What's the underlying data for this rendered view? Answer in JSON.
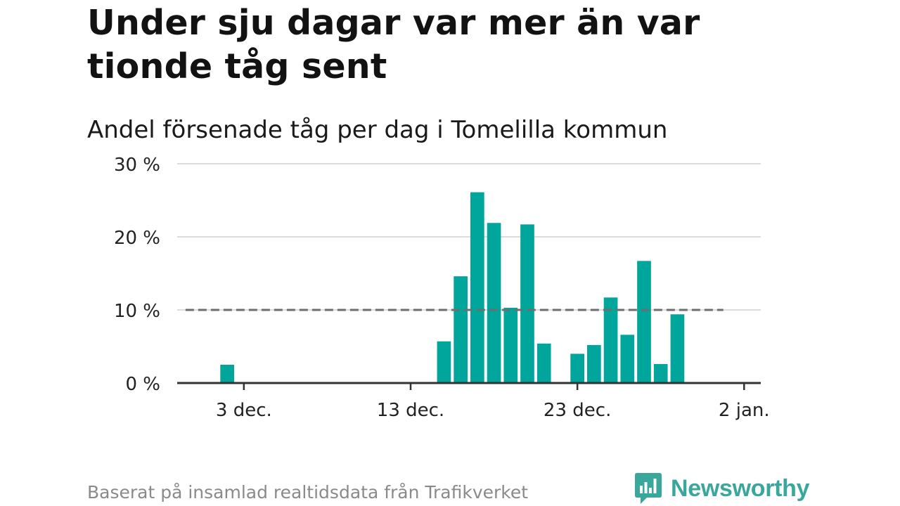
{
  "title": "Under sju dagar var mer än var tionde tåg sent",
  "subtitle": "Andel försenade tåg per dag i Tomelilla kommun",
  "source": "Baserat på insamlad realtidsdata från Trafikverket",
  "brand": {
    "name": "Newsworthy",
    "color": "#3aa79c"
  },
  "chart_data": {
    "type": "bar",
    "x_start_date": "2022-11-29",
    "x_end_date": "2023-01-03",
    "x_unit": "dag",
    "xticks": [
      {
        "date": "2022-12-03",
        "label": "3 dec."
      },
      {
        "date": "2022-12-13",
        "label": "13 dec."
      },
      {
        "date": "2022-12-23",
        "label": "23 dec."
      },
      {
        "date": "2023-01-02",
        "label": "2 jan."
      }
    ],
    "yticks": [
      {
        "value": 0,
        "label": "0 %"
      },
      {
        "value": 10,
        "label": "10 %"
      },
      {
        "value": 20,
        "label": "20 %"
      },
      {
        "value": 30,
        "label": "30 %"
      }
    ],
    "ylim": [
      0,
      30
    ],
    "grid": true,
    "bar_color": "#00a59b",
    "reference_line": {
      "value": 10,
      "style": "dashed",
      "color": "#6e6e6e",
      "x_from": "2022-11-30",
      "x_to": "2023-01-01"
    },
    "points": [
      {
        "date": "2022-12-02",
        "value": 2.5
      },
      {
        "date": "2022-12-15",
        "value": 5.7
      },
      {
        "date": "2022-12-16",
        "value": 14.6
      },
      {
        "date": "2022-12-17",
        "value": 26.1
      },
      {
        "date": "2022-12-18",
        "value": 21.9
      },
      {
        "date": "2022-12-19",
        "value": 10.3
      },
      {
        "date": "2022-12-20",
        "value": 21.7
      },
      {
        "date": "2022-12-21",
        "value": 5.4
      },
      {
        "date": "2022-12-23",
        "value": 4.0
      },
      {
        "date": "2022-12-24",
        "value": 5.2
      },
      {
        "date": "2022-12-25",
        "value": 11.7
      },
      {
        "date": "2022-12-26",
        "value": 6.6
      },
      {
        "date": "2022-12-27",
        "value": 16.7
      },
      {
        "date": "2022-12-28",
        "value": 2.6
      },
      {
        "date": "2022-12-29",
        "value": 9.4
      }
    ]
  }
}
